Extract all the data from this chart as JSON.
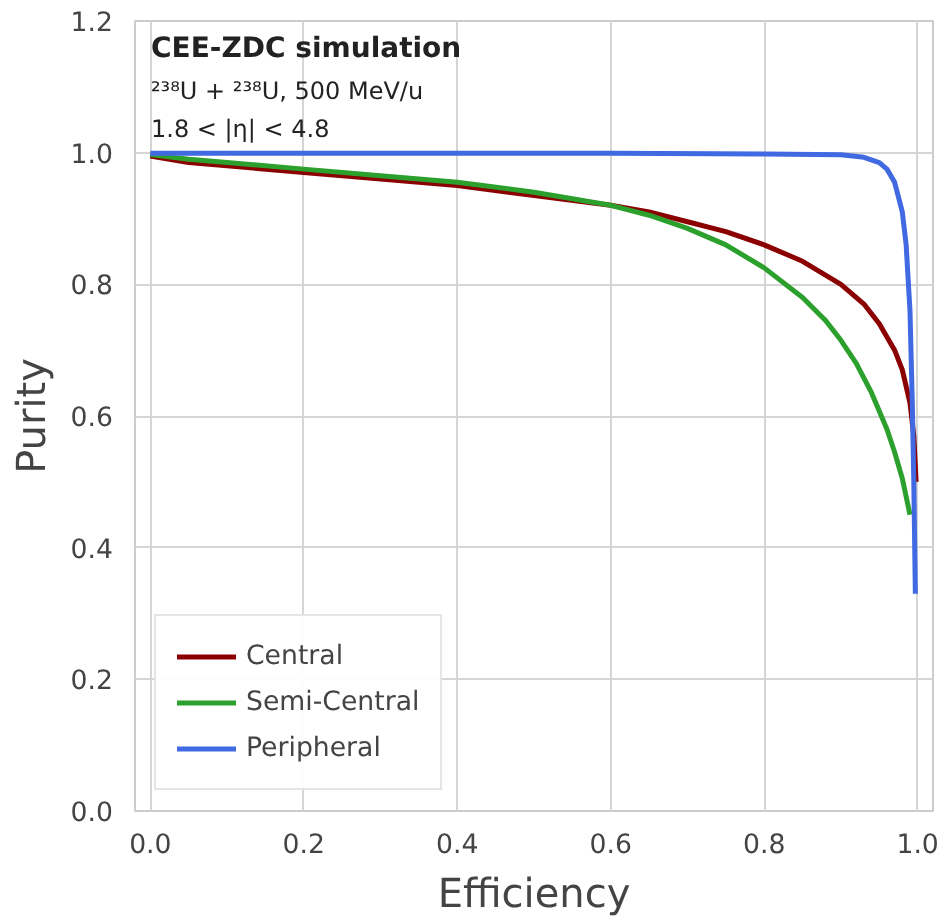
{
  "chart_data": {
    "type": "line",
    "xlabel": "Efficiency",
    "ylabel": "Purity",
    "annotations": [
      "CEE-ZDC simulation",
      "²³⁸U + ²³⁸U, 500 MeV/u",
      "1.8 < |η| < 4.8"
    ],
    "xlim": [
      -0.02,
      1.02
    ],
    "ylim": [
      0,
      1.2
    ],
    "xticks": [
      {
        "value": 0,
        "label": "0.0"
      },
      0.2,
      0.4,
      0.6,
      0.8,
      {
        "value": 1,
        "label": "1.0"
      }
    ],
    "yticks": [
      {
        "value": 0,
        "label": "0.0"
      },
      0.2,
      0.4,
      0.6,
      0.8,
      {
        "value": 1,
        "label": "1.0"
      },
      1.2
    ],
    "grid": true,
    "legend": "bottom left",
    "series": [
      {
        "name": "Central",
        "color": "#8b0000",
        "x": [
          0,
          0.05,
          0.1,
          0.2,
          0.3,
          0.4,
          0.5,
          0.6,
          0.65,
          0.7,
          0.75,
          0.8,
          0.85,
          0.9,
          0.93,
          0.95,
          0.97,
          0.98,
          0.99,
          0.995,
          0.998
        ],
        "values": [
          0.995,
          0.985,
          0.98,
          0.97,
          0.96,
          0.95,
          0.935,
          0.92,
          0.91,
          0.895,
          0.88,
          0.86,
          0.835,
          0.8,
          0.77,
          0.74,
          0.7,
          0.67,
          0.62,
          0.57,
          0.5
        ]
      },
      {
        "name": "Semi-Central",
        "color": "#2ca02c",
        "x": [
          0,
          0.05,
          0.1,
          0.2,
          0.3,
          0.4,
          0.5,
          0.6,
          0.65,
          0.7,
          0.75,
          0.8,
          0.85,
          0.88,
          0.9,
          0.92,
          0.94,
          0.96,
          0.97,
          0.98,
          0.99
        ],
        "values": [
          0.997,
          0.99,
          0.985,
          0.975,
          0.965,
          0.955,
          0.94,
          0.92,
          0.905,
          0.885,
          0.86,
          0.825,
          0.78,
          0.745,
          0.715,
          0.68,
          0.635,
          0.58,
          0.545,
          0.505,
          0.45
        ]
      },
      {
        "name": "Peripheral",
        "color": "#4169e1",
        "x": [
          0,
          0.2,
          0.4,
          0.6,
          0.8,
          0.9,
          0.93,
          0.95,
          0.96,
          0.97,
          0.98,
          0.985,
          0.99,
          0.993,
          0.995,
          0.997
        ],
        "values": [
          0.999,
          0.999,
          0.999,
          0.999,
          0.998,
          0.997,
          0.993,
          0.985,
          0.975,
          0.955,
          0.91,
          0.86,
          0.76,
          0.62,
          0.5,
          0.33
        ]
      }
    ]
  }
}
